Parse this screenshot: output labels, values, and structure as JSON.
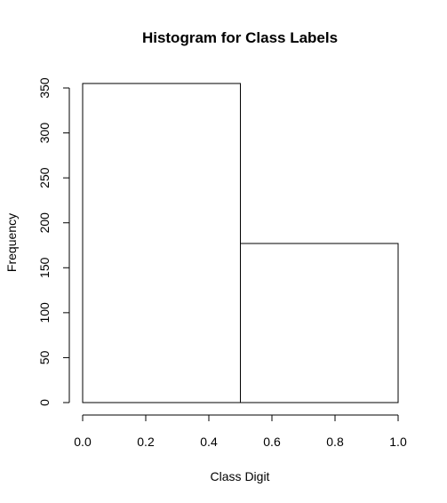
{
  "chart_data": {
    "type": "bar",
    "title": "Histogram for Class Labels",
    "xlabel": "Class Digit",
    "ylabel": "Frequency",
    "bins": [
      {
        "x0": 0.0,
        "x1": 0.5,
        "count": 355
      },
      {
        "x0": 0.5,
        "x1": 1.0,
        "count": 177
      }
    ],
    "xlim": [
      0.0,
      1.0
    ],
    "ylim": [
      0,
      350
    ],
    "xticks": [
      "0.0",
      "0.2",
      "0.4",
      "0.6",
      "0.8",
      "1.0"
    ],
    "yticks": [
      "0",
      "50",
      "100",
      "150",
      "200",
      "250",
      "300",
      "350"
    ],
    "grid": false,
    "colors": {
      "bar_fill": "#ffffff",
      "bar_stroke": "#000000"
    }
  }
}
